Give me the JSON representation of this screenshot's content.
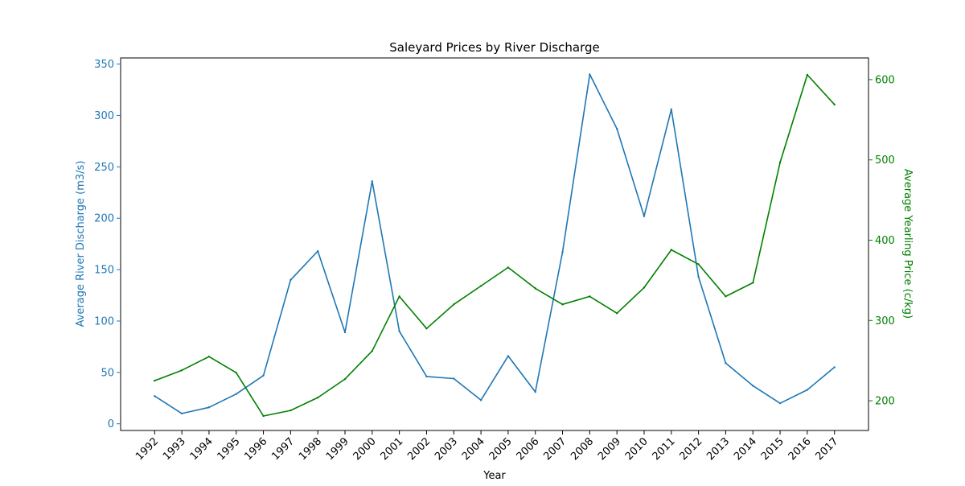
{
  "chart_data": {
    "type": "line",
    "title": "Saleyard Prices by River Discharge",
    "xlabel": "Year",
    "ylabel_left": "Average River Discharge (m3/s)",
    "ylabel_right": "Average Yearling Price (c/kg)",
    "x": [
      "1992",
      "1993",
      "1994",
      "1995",
      "1996",
      "1997",
      "1998",
      "1999",
      "2000",
      "2001",
      "2002",
      "2003",
      "2004",
      "2005",
      "2006",
      "2007",
      "2008",
      "2009",
      "2010",
      "2011",
      "2012",
      "2013",
      "2014",
      "2015",
      "2016",
      "2017"
    ],
    "y_left_ticks": [
      0,
      50,
      100,
      150,
      200,
      250,
      300,
      350
    ],
    "y_right_ticks": [
      200,
      300,
      400,
      500,
      600
    ],
    "ylim_left": [
      -6.5,
      356
    ],
    "ylim_right": [
      163,
      627
    ],
    "grid": false,
    "colors": {
      "left": "#1f77b4",
      "right": "#008000",
      "axis": "#000000"
    },
    "series": [
      {
        "axis": "left",
        "color": "#1f77b4",
        "values": [
          27,
          10,
          16,
          29,
          47,
          140,
          168,
          89,
          236,
          90,
          46,
          44,
          23,
          66,
          31,
          167,
          340,
          287,
          202,
          306,
          143,
          59,
          37,
          20,
          33,
          55
        ]
      },
      {
        "axis": "right",
        "color": "#008000",
        "values": [
          225,
          238,
          255,
          235,
          181,
          188,
          204,
          227,
          262,
          330,
          290,
          320,
          343,
          366,
          340,
          320,
          330,
          309,
          341,
          388,
          370,
          330,
          347,
          497,
          606,
          569
        ]
      }
    ]
  }
}
